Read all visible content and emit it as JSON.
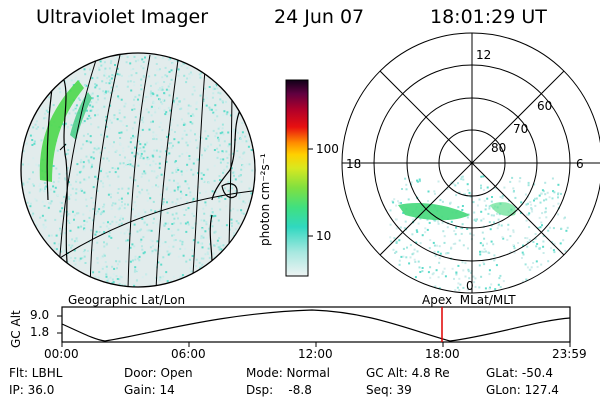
{
  "header": {
    "title": "Ultraviolet Imager",
    "date": "24 Jun 07",
    "time": "18:01:29 UT"
  },
  "colorbar": {
    "label": "photon cm⁻²s⁻¹",
    "ticks": [
      "100",
      "10"
    ]
  },
  "geo_panel": {
    "caption": "Geographic Lat/Lon"
  },
  "polar_panel": {
    "caption": "Apex  MLat/MLT",
    "mlt_labels": {
      "top": "12",
      "left": "18",
      "right": "6",
      "bottom": "0"
    },
    "lat_labels": [
      "60",
      "70",
      "80"
    ]
  },
  "orbit": {
    "ylabel": "GC Alt",
    "yticks": [
      "9.0",
      "1.8"
    ],
    "xticks": [
      "00:00",
      "06:00",
      "12:00",
      "18:00",
      "23:59"
    ],
    "marker_time": "18:01:29",
    "marker_color": "#e00000"
  },
  "status": {
    "flt": "Flt: LBHL",
    "ip": "IP: 36.0",
    "door": "Door: Open",
    "gain": "Gain: 14",
    "mode": "Mode: Normal",
    "dsp": "Dsp:    -8.8",
    "gcalt": "GC Alt: 4.8 Re",
    "seq": "Seq: 39",
    "glat": "GLat: -50.4",
    "glon": "GLon: 127.4"
  }
}
